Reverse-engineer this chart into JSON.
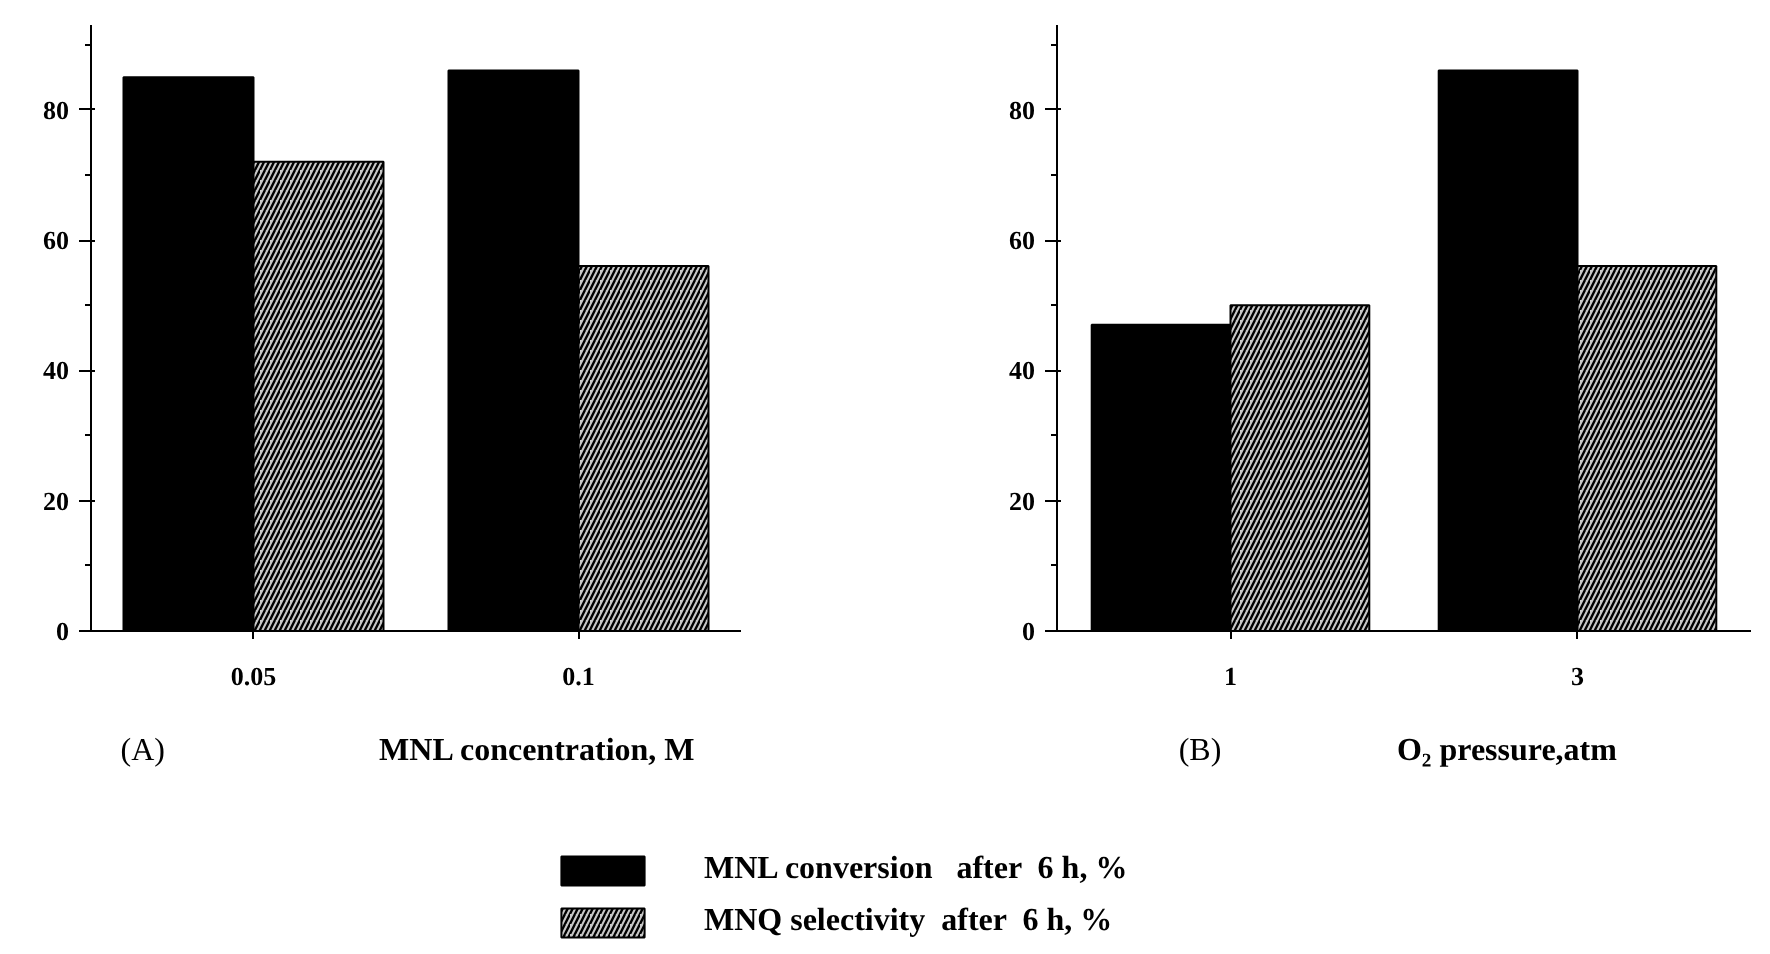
{
  "chart_data": [
    {
      "type": "bar",
      "categories": [
        "0.05",
        "0.1"
      ],
      "xlabel": "MNL concentration, M",
      "series": [
        {
          "name": "MNL conversion   after  6 h, %",
          "color": "#000000",
          "values": [
            85,
            86
          ]
        },
        {
          "name": "MNQ selectivity  after  6 h, %",
          "color": "#c8c8c8",
          "values": [
            72,
            56
          ]
        }
      ],
      "ylim": [
        0,
        93
      ],
      "yticks": [
        0,
        {
          "value": 10,
          "label": null
        },
        20,
        {
          "value": 30,
          "label": null
        },
        40,
        {
          "value": 50,
          "label": null
        },
        60,
        {
          "value": 70,
          "label": null
        },
        80,
        {
          "value": 90,
          "label": null
        }
      ],
      "annotations": [
        "(A)"
      ],
      "grid": false,
      "legend": "bottom"
    },
    {
      "type": "bar",
      "categories": [
        "1",
        "3"
      ],
      "xlabel": "O₂ pressure,atm",
      "series": [
        {
          "color": "#000000",
          "values": [
            47,
            86
          ]
        },
        {
          "color": "#c8c8c8",
          "values": [
            50,
            56
          ]
        }
      ],
      "ylim": [
        0,
        93
      ],
      "yticks": [
        0,
        {
          "value": 10,
          "label": null
        },
        20,
        {
          "value": 30,
          "label": null
        },
        40,
        {
          "value": 50,
          "label": null
        },
        60,
        {
          "value": 70,
          "label": null
        },
        80,
        {
          "value": 90,
          "label": null
        }
      ],
      "annotations": [
        "(B)"
      ],
      "grid": false
    }
  ]
}
